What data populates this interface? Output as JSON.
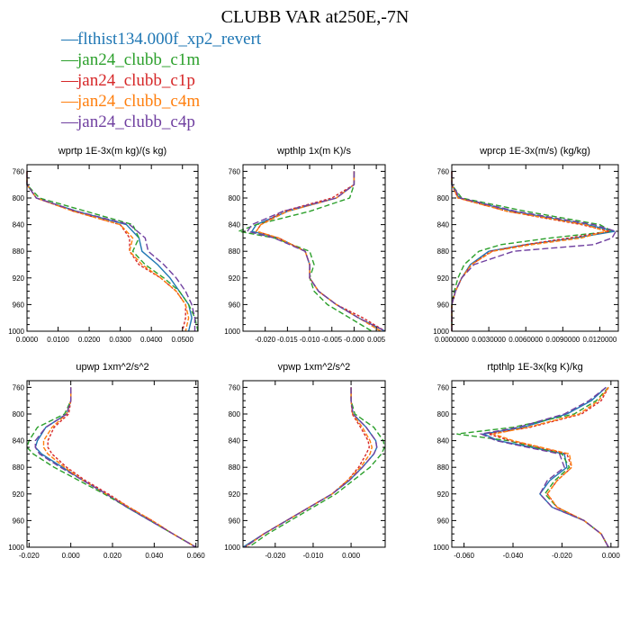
{
  "title": "CLUBB VAR at250E,-7N",
  "legend": [
    {
      "label": "flthist134.000f_xp2_revert",
      "color": "#1f77b4"
    },
    {
      "label": "jan24_clubb_c1m",
      "color": "#2ca02c"
    },
    {
      "label": "jan24_clubb_c1p",
      "color": "#d62728"
    },
    {
      "label": "jan24_clubb_c4m",
      "color": "#ff7f0e"
    },
    {
      "label": "jan24_clubb_c4p",
      "color": "#7040a0"
    }
  ],
  "chart_data": [
    {
      "type": "line",
      "title": "wprtp  1E-3x(m kg)/(s kg)",
      "xlim": [
        0.0,
        0.055
      ],
      "ylim": [
        1000,
        750
      ],
      "xticks": [
        0,
        0.01,
        0.02,
        0.03,
        0.04,
        0.05
      ],
      "xtick_labels": [
        "0.0000",
        "0.0100",
        "0.0200",
        "0.0300",
        "0.0400",
        "0.0500"
      ],
      "yticks": [
        760,
        800,
        840,
        880,
        920,
        960,
        1000
      ],
      "y": [
        760,
        780,
        800,
        820,
        840,
        860,
        880,
        900,
        920,
        940,
        960,
        980,
        1000
      ],
      "series": [
        {
          "name": "flthist134.000f_xp2_revert",
          "x": [
            0,
            0,
            0.003,
            0.016,
            0.032,
            0.036,
            0.037,
            0.042,
            0.046,
            0.049,
            0.052,
            0.053,
            0.052
          ]
        },
        {
          "name": "jan24_clubb_c1m",
          "x": [
            0,
            0,
            0.004,
            0.019,
            0.034,
            0.036,
            0.034,
            0.038,
            0.044,
            0.049,
            0.052,
            0.054,
            0.055
          ]
        },
        {
          "name": "jan24_clubb_c1p",
          "x": [
            0,
            0,
            0.003,
            0.015,
            0.03,
            0.033,
            0.033,
            0.036,
            0.043,
            0.048,
            0.051,
            0.051,
            0.05
          ]
        },
        {
          "name": "jan24_clubb_c4m",
          "x": [
            0,
            0,
            0.003,
            0.015,
            0.03,
            0.034,
            0.033,
            0.037,
            0.043,
            0.048,
            0.051,
            0.052,
            0.051
          ]
        },
        {
          "name": "jan24_clubb_c4p",
          "x": [
            0,
            0,
            0.003,
            0.016,
            0.033,
            0.038,
            0.039,
            0.044,
            0.048,
            0.051,
            0.053,
            0.054,
            0.054
          ]
        }
      ]
    },
    {
      "type": "line",
      "title": "wpthlp  1x(m K)/s",
      "xlim": [
        -0.025,
        0.007
      ],
      "ylim": [
        1000,
        750
      ],
      "xticks": [
        -0.02,
        -0.015,
        -0.01,
        -0.005,
        0.0,
        0.005
      ],
      "xtick_labels": [
        "-0.020",
        "-0.015",
        "-0.010",
        "-0.005",
        "-0.000",
        "0.005"
      ],
      "yticks": [
        760,
        800,
        840,
        880,
        920,
        960,
        1000
      ],
      "y": [
        760,
        780,
        800,
        820,
        840,
        850,
        860,
        880,
        900,
        920,
        940,
        960,
        980,
        1000
      ],
      "series": [
        {
          "name": "flthist134.000f_xp2_revert",
          "x": [
            0,
            0,
            -0.004,
            -0.015,
            -0.022,
            -0.023,
            -0.017,
            -0.011,
            -0.01,
            -0.01,
            -0.008,
            -0.004,
            0.001,
            0.007
          ]
        },
        {
          "name": "jan24_clubb_c1m",
          "x": [
            0,
            0,
            -0.001,
            -0.01,
            -0.022,
            -0.026,
            -0.018,
            -0.01,
            -0.009,
            -0.01,
            -0.009,
            -0.006,
            -0.001,
            0.004
          ]
        },
        {
          "name": "jan24_clubb_c1p",
          "x": [
            0,
            0,
            -0.005,
            -0.016,
            -0.021,
            -0.022,
            -0.017,
            -0.011,
            -0.01,
            -0.01,
            -0.008,
            -0.004,
            0.002,
            0.007
          ]
        },
        {
          "name": "jan24_clubb_c4m",
          "x": [
            0,
            0,
            -0.004,
            -0.015,
            -0.021,
            -0.022,
            -0.017,
            -0.011,
            -0.01,
            -0.01,
            -0.008,
            -0.004,
            0.001,
            0.006
          ]
        },
        {
          "name": "jan24_clubb_c4p",
          "x": [
            0,
            0,
            -0.004,
            -0.016,
            -0.023,
            -0.024,
            -0.018,
            -0.011,
            -0.01,
            -0.01,
            -0.008,
            -0.004,
            0.001,
            0.007
          ]
        }
      ]
    },
    {
      "type": "line",
      "title": "wprcp  1E-3x(m/s) (kg/kg)",
      "xlim": [
        0.0,
        0.0135
      ],
      "ylim": [
        1000,
        750
      ],
      "xticks": [
        0,
        0.003,
        0.006,
        0.009,
        0.012
      ],
      "xtick_labels": [
        "0.0000000",
        "0.0030000",
        "0.0060000",
        "0.0090000",
        "0.0120000"
      ],
      "yticks": [
        760,
        800,
        840,
        880,
        920,
        960,
        1000
      ],
      "y": [
        760,
        780,
        800,
        820,
        840,
        850,
        860,
        870,
        880,
        900,
        920,
        940,
        960,
        980,
        1000
      ],
      "series": [
        {
          "name": "flthist134.000f_xp2_revert",
          "x": [
            0,
            0,
            0.0006,
            0.005,
            0.011,
            0.0132,
            0.01,
            0.006,
            0.003,
            0.0015,
            0.0008,
            0.0003,
            0,
            0,
            0
          ]
        },
        {
          "name": "jan24_clubb_c1m",
          "x": [
            0,
            0,
            0.0008,
            0.006,
            0.012,
            0.013,
            0.008,
            0.004,
            0.0022,
            0.001,
            0.0005,
            0.0002,
            0,
            0,
            0
          ]
        },
        {
          "name": "jan24_clubb_c1p",
          "x": [
            0,
            0,
            0.0005,
            0.0045,
            0.0105,
            0.0128,
            0.0095,
            0.006,
            0.0032,
            0.0016,
            0.0008,
            0.0003,
            0,
            0,
            0
          ]
        },
        {
          "name": "jan24_clubb_c4m",
          "x": [
            0,
            0,
            0.0005,
            0.0045,
            0.0108,
            0.0125,
            0.0105,
            0.0065,
            0.0033,
            0.0016,
            0.0008,
            0.0003,
            0,
            0,
            0
          ]
        },
        {
          "name": "jan24_clubb_c4p",
          "x": [
            0,
            0,
            0.0007,
            0.0052,
            0.0115,
            0.0133,
            0.013,
            0.0115,
            0.005,
            0.0018,
            0.0008,
            0.0003,
            0,
            0,
            0
          ]
        }
      ]
    },
    {
      "type": "line",
      "title": "upwp  1xm^2/s^2",
      "xlim": [
        -0.021,
        0.061
      ],
      "ylim": [
        1000,
        750
      ],
      "xticks": [
        -0.02,
        0.0,
        0.02,
        0.04,
        0.06
      ],
      "xtick_labels": [
        "-0.020",
        "0.000",
        "0.020",
        "0.040",
        "0.060"
      ],
      "yticks": [
        760,
        800,
        840,
        880,
        920,
        960,
        1000
      ],
      "y": [
        760,
        780,
        800,
        820,
        840,
        850,
        860,
        880,
        900,
        920,
        940,
        960,
        980,
        1000
      ],
      "series": [
        {
          "name": "flthist134.000f_xp2_revert",
          "x": [
            0,
            0,
            -0.002,
            -0.012,
            -0.016,
            -0.017,
            -0.014,
            -0.004,
            0.006,
            0.017,
            0.027,
            0.038,
            0.049,
            0.06
          ]
        },
        {
          "name": "jan24_clubb_c1m",
          "x": [
            0,
            0,
            -0.003,
            -0.016,
            -0.02,
            -0.021,
            -0.018,
            -0.008,
            0.004,
            0.016,
            0.027,
            0.038,
            0.049,
            0.06
          ]
        },
        {
          "name": "jan24_clubb_c1p",
          "x": [
            0,
            0,
            -0.001,
            -0.008,
            -0.011,
            -0.011,
            -0.009,
            -0.002,
            0.007,
            0.018,
            0.028,
            0.039,
            0.049,
            0.06
          ]
        },
        {
          "name": "jan24_clubb_c4m",
          "x": [
            0,
            0,
            -0.002,
            -0.009,
            -0.013,
            -0.013,
            -0.011,
            -0.003,
            0.006,
            0.017,
            0.028,
            0.039,
            0.049,
            0.06
          ]
        },
        {
          "name": "jan24_clubb_c4p",
          "x": [
            0,
            0,
            -0.002,
            -0.012,
            -0.017,
            -0.017,
            -0.015,
            -0.005,
            0.006,
            0.017,
            0.027,
            0.038,
            0.049,
            0.06
          ]
        }
      ]
    },
    {
      "type": "line",
      "title": "vpwp  1xm^2/s^2",
      "xlim": [
        -0.0285,
        0.009
      ],
      "ylim": [
        1000,
        750
      ],
      "xticks": [
        -0.02,
        -0.01,
        0.0
      ],
      "xtick_labels": [
        "-0.020",
        "-0.010",
        "0.000"
      ],
      "yticks": [
        760,
        800,
        840,
        880,
        920,
        960,
        1000
      ],
      "y": [
        760,
        780,
        800,
        820,
        840,
        850,
        860,
        880,
        900,
        920,
        940,
        960,
        980,
        1000
      ],
      "series": [
        {
          "name": "flthist134.000f_xp2_revert",
          "x": [
            0,
            0,
            0.0005,
            0.004,
            0.0065,
            0.0068,
            0.006,
            0.003,
            -0.0005,
            -0.005,
            -0.011,
            -0.017,
            -0.023,
            -0.0285
          ]
        },
        {
          "name": "jan24_clubb_c1m",
          "x": [
            0,
            0,
            0.001,
            0.006,
            0.0085,
            0.0088,
            0.008,
            0.005,
            0.0005,
            -0.004,
            -0.01,
            -0.016,
            -0.022,
            -0.027
          ]
        },
        {
          "name": "jan24_clubb_c1p",
          "x": [
            0,
            0,
            0.0003,
            0.0025,
            0.0045,
            0.0048,
            0.004,
            0.002,
            -0.001,
            -0.005,
            -0.011,
            -0.017,
            -0.023,
            -0.028
          ]
        },
        {
          "name": "jan24_clubb_c4m",
          "x": [
            0,
            0,
            0.0004,
            0.003,
            0.005,
            0.0055,
            0.005,
            0.0025,
            -0.001,
            -0.005,
            -0.011,
            -0.017,
            -0.023,
            -0.028
          ]
        },
        {
          "name": "jan24_clubb_c4p",
          "x": [
            0,
            0,
            0.0005,
            0.004,
            0.0065,
            0.0068,
            0.006,
            0.003,
            -0.0005,
            -0.005,
            -0.011,
            -0.017,
            -0.023,
            -0.028
          ]
        }
      ]
    },
    {
      "type": "line",
      "title": "rtpthlp  1E-3x(kg K)/kg",
      "xlim": [
        -0.065,
        0.003
      ],
      "ylim": [
        1000,
        750
      ],
      "xticks": [
        -0.06,
        -0.04,
        -0.02,
        0.0
      ],
      "xtick_labels": [
        "-0.060",
        "-0.040",
        "-0.020",
        "0.000"
      ],
      "yticks": [
        760,
        800,
        840,
        880,
        920,
        960,
        1000
      ],
      "y": [
        760,
        780,
        800,
        820,
        830,
        840,
        860,
        880,
        900,
        920,
        940,
        960,
        980,
        1000
      ],
      "series": [
        {
          "name": "flthist134.000f_xp2_revert",
          "x": [
            -0.002,
            -0.008,
            -0.018,
            -0.036,
            -0.052,
            -0.046,
            -0.019,
            -0.018,
            -0.025,
            -0.029,
            -0.024,
            -0.011,
            -0.004,
            -0.001
          ]
        },
        {
          "name": "jan24_clubb_c1m",
          "x": [
            -0.001,
            -0.006,
            -0.015,
            -0.04,
            -0.063,
            -0.042,
            -0.02,
            -0.017,
            -0.023,
            -0.027,
            -0.022,
            -0.011,
            -0.004,
            -0.001
          ]
        },
        {
          "name": "jan24_clubb_c1p",
          "x": [
            -0.001,
            -0.004,
            -0.012,
            -0.033,
            -0.05,
            -0.041,
            -0.018,
            -0.016,
            -0.022,
            -0.026,
            -0.022,
            -0.011,
            -0.004,
            -0.001
          ]
        },
        {
          "name": "jan24_clubb_c4m",
          "x": [
            -0.001,
            -0.005,
            -0.013,
            -0.034,
            -0.048,
            -0.04,
            -0.017,
            -0.016,
            -0.022,
            -0.026,
            -0.022,
            -0.011,
            -0.004,
            -0.001
          ]
        },
        {
          "name": "jan24_clubb_c4p",
          "x": [
            -0.002,
            -0.009,
            -0.019,
            -0.038,
            -0.053,
            -0.047,
            -0.021,
            -0.019,
            -0.026,
            -0.029,
            -0.024,
            -0.011,
            -0.004,
            -0.001
          ]
        }
      ]
    }
  ]
}
